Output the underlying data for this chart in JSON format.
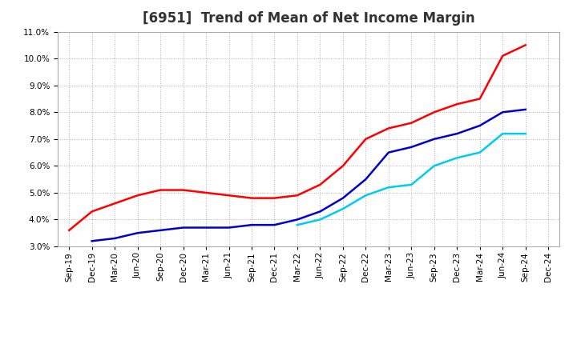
{
  "title": "[6951]  Trend of Mean of Net Income Margin",
  "ylim": [
    0.03,
    0.11
  ],
  "yticks": [
    0.03,
    0.04,
    0.05,
    0.06,
    0.07,
    0.08,
    0.09,
    0.1,
    0.11
  ],
  "background_color": "#ffffff",
  "grid_color": "#b0b0b0",
  "series": {
    "3 Years": {
      "color": "#ff0000",
      "x": [
        0,
        1,
        2,
        3,
        4,
        5,
        6,
        7,
        8,
        9,
        10,
        11,
        12,
        13,
        14,
        15,
        16,
        17,
        18,
        19,
        20
      ],
      "y": [
        0.036,
        0.043,
        0.046,
        0.049,
        0.051,
        0.051,
        0.05,
        0.049,
        0.048,
        0.048,
        0.049,
        0.053,
        0.06,
        0.07,
        0.074,
        0.076,
        0.08,
        0.083,
        0.085,
        0.101,
        0.105
      ]
    },
    "5 Years": {
      "color": "#0000cc",
      "x": [
        1,
        2,
        3,
        4,
        5,
        6,
        7,
        8,
        9,
        10,
        11,
        12,
        13,
        14,
        15,
        16,
        17,
        18,
        19,
        20
      ],
      "y": [
        0.032,
        0.033,
        0.035,
        0.036,
        0.037,
        0.037,
        0.037,
        0.038,
        0.038,
        0.04,
        0.043,
        0.048,
        0.055,
        0.065,
        0.067,
        0.07,
        0.072,
        0.075,
        0.08,
        0.081
      ]
    },
    "7 Years": {
      "color": "#00ccee",
      "x": [
        10,
        11,
        12,
        13,
        14,
        15,
        16,
        17,
        18,
        19,
        20
      ],
      "y": [
        0.038,
        0.04,
        0.044,
        0.049,
        0.052,
        0.053,
        0.06,
        0.063,
        0.065,
        0.072,
        0.072
      ]
    },
    "10 Years": {
      "color": "#007700",
      "x": [],
      "y": []
    }
  },
  "x_labels": [
    "Sep-19",
    "Dec-19",
    "Mar-20",
    "Jun-20",
    "Sep-20",
    "Dec-20",
    "Mar-21",
    "Jun-21",
    "Sep-21",
    "Dec-21",
    "Mar-22",
    "Jun-22",
    "Sep-22",
    "Dec-22",
    "Mar-23",
    "Jun-23",
    "Sep-23",
    "Dec-23",
    "Mar-24",
    "Jun-24",
    "Sep-24",
    "Dec-24"
  ],
  "title_fontsize": 12,
  "tick_fontsize": 7.5,
  "legend_fontsize": 9,
  "linewidth": 1.8
}
